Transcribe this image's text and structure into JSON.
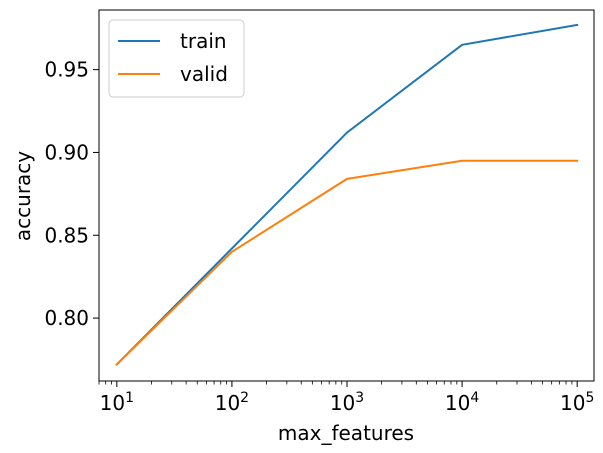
{
  "chart_data": {
    "type": "line",
    "title": "",
    "xlabel": "max_features",
    "ylabel": "accuracy",
    "xscale": "log",
    "x": [
      10,
      100,
      1000,
      10000,
      100000
    ],
    "xlim": [
      7,
      140000
    ],
    "ylim": [
      0.762,
      0.986
    ],
    "xticks": [
      {
        "value": 10,
        "base": "10",
        "exp": "1"
      },
      {
        "value": 100,
        "base": "10",
        "exp": "2"
      },
      {
        "value": 1000,
        "base": "10",
        "exp": "3"
      },
      {
        "value": 10000,
        "base": "10",
        "exp": "4"
      },
      {
        "value": 100000,
        "base": "10",
        "exp": "5"
      }
    ],
    "yticks": [
      {
        "value": 0.8,
        "label": "0.80"
      },
      {
        "value": 0.85,
        "label": "0.85"
      },
      {
        "value": 0.9,
        "label": "0.90"
      },
      {
        "value": 0.95,
        "label": "0.95"
      }
    ],
    "grid": false,
    "legend": "top-left",
    "series": [
      {
        "name": "train",
        "color": "#1f77b4",
        "values": [
          0.772,
          0.842,
          0.912,
          0.965,
          0.977
        ]
      },
      {
        "name": "valid",
        "color": "#ff7f0e",
        "values": [
          0.772,
          0.84,
          0.884,
          0.895,
          0.895
        ]
      }
    ]
  }
}
